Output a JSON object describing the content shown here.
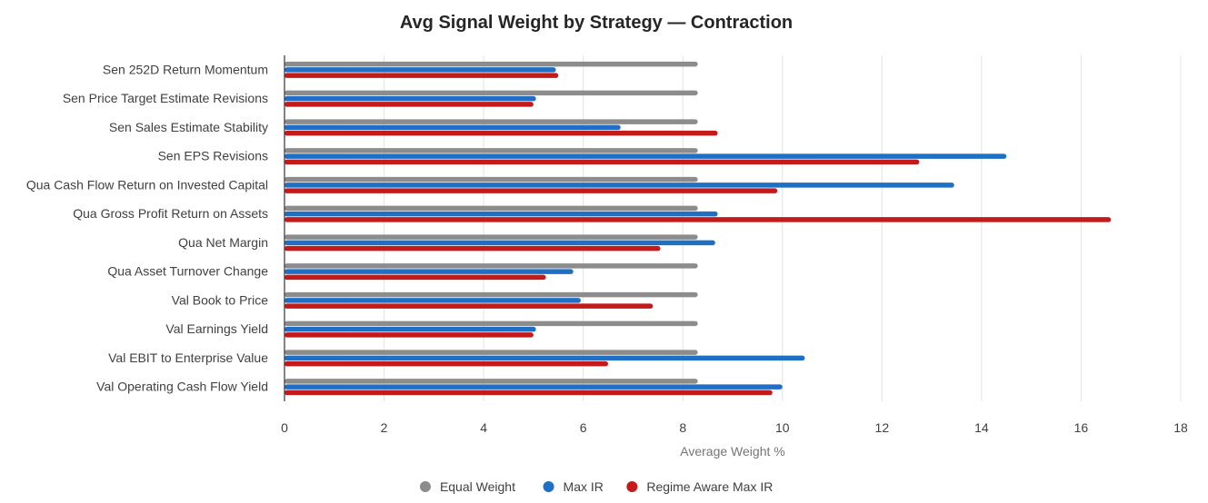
{
  "chart_data": {
    "type": "bar",
    "orientation": "horizontal",
    "title": "Avg Signal Weight by Strategy — Contraction",
    "xlabel": "Average Weight %",
    "ylabel": "",
    "xlim": [
      0,
      18
    ],
    "x_ticks": [
      0,
      2,
      4,
      6,
      8,
      10,
      12,
      14,
      16,
      18
    ],
    "grid": true,
    "legend_position": "bottom-center",
    "categories": [
      "Sen 252D Return Momentum",
      "Sen Price Target Estimate Revisions",
      "Sen Sales Estimate Stability",
      "Sen EPS Revisions",
      "Qua Cash Flow Return on Invested Capital",
      "Qua Gross Profit Return on Assets",
      "Qua Net Margin",
      "Qua Asset Turnover Change",
      "Val Book to Price",
      "Val Earnings Yield",
      "Val EBIT to Enterprise Value",
      "Val Operating Cash Flow Yield"
    ],
    "series": [
      {
        "name": "Equal Weight",
        "color": "#8c8c8c",
        "values": [
          8.3,
          8.3,
          8.3,
          8.3,
          8.3,
          8.3,
          8.3,
          8.3,
          8.3,
          8.3,
          8.3,
          8.3
        ]
      },
      {
        "name": "Max IR",
        "color": "#1f6fc5",
        "values": [
          5.45,
          5.05,
          6.75,
          14.5,
          13.45,
          8.7,
          8.65,
          5.8,
          5.95,
          5.05,
          10.45,
          10.0
        ]
      },
      {
        "name": "Regime Aware Max IR",
        "color": "#c41a1a",
        "values": [
          5.5,
          5.0,
          8.7,
          12.75,
          9.9,
          16.6,
          7.55,
          5.25,
          7.4,
          5.0,
          6.5,
          9.8
        ]
      }
    ]
  }
}
